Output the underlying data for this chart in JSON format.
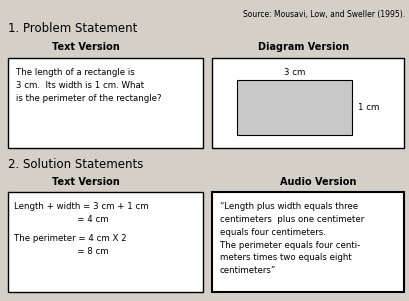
{
  "bg_color": "#d4d0c8",
  "source_text": "Source: Mousavi, Low, and Sweller (1995).",
  "section1_title": "1. Problem Statement",
  "section2_title": "2. Solution Statements",
  "text_version_label": "Text Version",
  "diagram_version_label": "Diagram Version",
  "text_version_label2": "Text Version",
  "audio_version_label": "Audio Version",
  "problem_text": "The length of a rectangle is\n3 cm.  Its width is 1 cm. What\nis the perimeter of the rectangle?",
  "solution_text_line1": "Length + width = 3 cm + 1 cm",
  "solution_text_line2": "                       = 4 cm",
  "solution_text_line3": "The perimeter = 4 cm X 2",
  "solution_text_line4": "                       = 8 cm",
  "audio_text": "“Length plus width equals three\ncentimeters  plus one centimeter\nequals four centimeters.\nThe perimeter equals four centi-\nmeters times two equals eight\ncentimeters”",
  "rect_label_top": "3 cm",
  "rect_label_right": "1 cm",
  "box_edge_color": "#000000",
  "box_fill_color": "#ffffff",
  "rect_fill_color": "#c8c8c8",
  "font_size_title": 8.5,
  "font_size_label": 7,
  "font_size_body": 6.2,
  "font_size_source": 5.5
}
